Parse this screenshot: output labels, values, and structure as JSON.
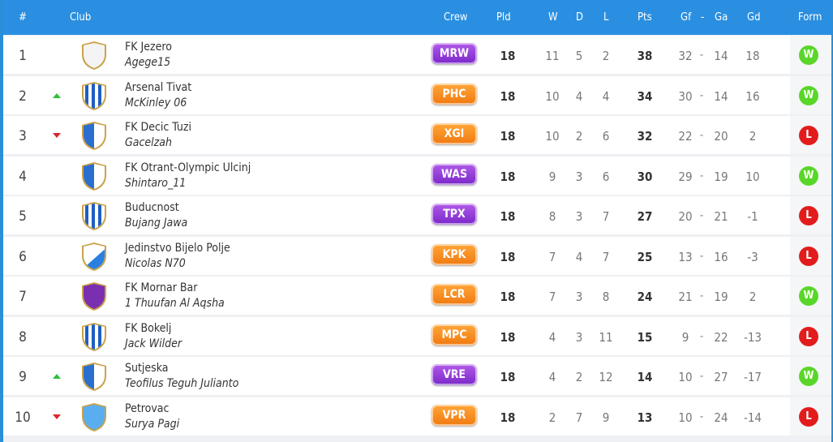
{
  "header": {
    "pos": "#",
    "club": "Club",
    "crew": "Crew",
    "pld": "Pld",
    "w": "W",
    "d": "D",
    "l": "L",
    "pts": "Pts",
    "gf": "Gf",
    "sep": "-",
    "ga": "Ga",
    "gd": "Gd",
    "form": "Form"
  },
  "colors": {
    "header_bg": "#2a8fe0",
    "win": "#5ad62a",
    "loss": "#e21c1c",
    "trend_up": "#2fbf3a",
    "trend_down": "#d9262c"
  },
  "rows": [
    {
      "pos": "1",
      "trend": "none",
      "crest": "white-crest-icon",
      "club": "FK Jezero",
      "manager": "Agege15",
      "crew": "MRW",
      "crew_color": "purple",
      "pld": "18",
      "w": "11",
      "d": "5",
      "l": "2",
      "pts": "38",
      "gf": "32",
      "sep": "-",
      "ga": "14",
      "gd": "18",
      "form": "W"
    },
    {
      "pos": "2",
      "trend": "up",
      "crest": "blue-white-striped-crest-icon",
      "club": "Arsenal Tivat",
      "manager": "McKinley 06",
      "crew": "PHC",
      "crew_color": "orange",
      "pld": "18",
      "w": "10",
      "d": "4",
      "l": "4",
      "pts": "34",
      "gf": "30",
      "sep": "-",
      "ga": "14",
      "gd": "16",
      "form": "W"
    },
    {
      "pos": "3",
      "trend": "down",
      "crest": "blue-white-half-crest-icon",
      "club": "FK Decic Tuzi",
      "manager": "Gacelzah",
      "crew": "XGI",
      "crew_color": "orange",
      "pld": "18",
      "w": "10",
      "d": "2",
      "l": "6",
      "pts": "32",
      "gf": "22",
      "sep": "-",
      "ga": "20",
      "gd": "2",
      "form": "L"
    },
    {
      "pos": "4",
      "trend": "none",
      "crest": "blue-white-half-crest-icon",
      "club": "FK Otrant-Olympic Ulcinj",
      "manager": "Shintaro_11",
      "crew": "WAS",
      "crew_color": "purple",
      "pld": "18",
      "w": "9",
      "d": "3",
      "l": "6",
      "pts": "30",
      "gf": "29",
      "sep": "-",
      "ga": "19",
      "gd": "10",
      "form": "W"
    },
    {
      "pos": "5",
      "trend": "none",
      "crest": "blue-white-striped-crest-icon",
      "club": "Buducnost",
      "manager": "Bujang Jawa",
      "crew": "TPX",
      "crew_color": "purple",
      "pld": "18",
      "w": "8",
      "d": "3",
      "l": "7",
      "pts": "27",
      "gf": "20",
      "sep": "-",
      "ga": "21",
      "gd": "-1",
      "form": "L"
    },
    {
      "pos": "6",
      "trend": "none",
      "crest": "blue-white-diagonal-crest-icon",
      "club": "Jedinstvo Bijelo Polje",
      "manager": "Nicolas N70",
      "crew": "KPK",
      "crew_color": "orange",
      "pld": "18",
      "w": "7",
      "d": "4",
      "l": "7",
      "pts": "25",
      "gf": "13",
      "sep": "-",
      "ga": "16",
      "gd": "-3",
      "form": "L"
    },
    {
      "pos": "7",
      "trend": "none",
      "crest": "purple-crest-icon",
      "club": "FK Mornar Bar",
      "manager": "1 Thuufan Al Aqsha",
      "crew": "LCR",
      "crew_color": "orange",
      "pld": "18",
      "w": "7",
      "d": "3",
      "l": "8",
      "pts": "24",
      "gf": "21",
      "sep": "-",
      "ga": "19",
      "gd": "2",
      "form": "W"
    },
    {
      "pos": "8",
      "trend": "none",
      "crest": "blue-white-striped-crest-icon",
      "club": "FK Bokelj",
      "manager": "Jack Wilder",
      "crew": "MPC",
      "crew_color": "orange",
      "pld": "18",
      "w": "4",
      "d": "3",
      "l": "11",
      "pts": "15",
      "gf": "9",
      "sep": "-",
      "ga": "22",
      "gd": "-13",
      "form": "L"
    },
    {
      "pos": "9",
      "trend": "up",
      "crest": "blue-white-half-crest-icon",
      "club": "Sutjeska",
      "manager": "Teofilus Teguh Julianto",
      "crew": "VRE",
      "crew_color": "purple",
      "pld": "18",
      "w": "4",
      "d": "2",
      "l": "12",
      "pts": "14",
      "gf": "10",
      "sep": "-",
      "ga": "27",
      "gd": "-17",
      "form": "W"
    },
    {
      "pos": "10",
      "trend": "down",
      "crest": "light-blue-crest-icon",
      "club": "Petrovac",
      "manager": "Surya Pagi",
      "crew": "VPR",
      "crew_color": "orange",
      "pld": "18",
      "w": "2",
      "d": "7",
      "l": "9",
      "pts": "13",
      "gf": "10",
      "sep": "-",
      "ga": "24",
      "gd": "-14",
      "form": "L"
    }
  ]
}
